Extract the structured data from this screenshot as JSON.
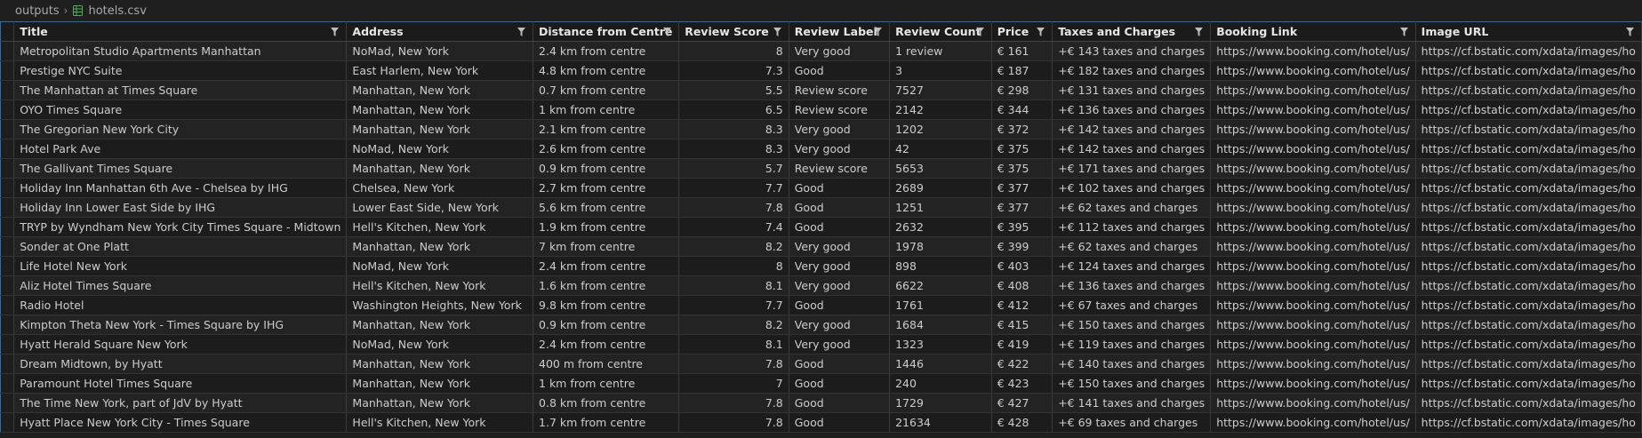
{
  "breadcrumb": {
    "folder": "outputs",
    "file": "hotels.csv"
  },
  "colors": {
    "accent": "#2a6fb5",
    "csv_icon": "#4caf50"
  },
  "columns": [
    {
      "label": "Title",
      "align": "left"
    },
    {
      "label": "Address",
      "align": "left"
    },
    {
      "label": "Distance from Centre",
      "align": "left"
    },
    {
      "label": "Review Score",
      "align": "right"
    },
    {
      "label": "Review Label",
      "align": "left"
    },
    {
      "label": "Review Count",
      "align": "left"
    },
    {
      "label": "Price",
      "align": "left"
    },
    {
      "label": "Taxes and Charges",
      "align": "left"
    },
    {
      "label": "Booking Link",
      "align": "left"
    },
    {
      "label": "Image URL",
      "align": "left"
    }
  ],
  "rows": [
    [
      "Metropolitan Studio Apartments Manhattan",
      "NoMad, New York",
      "2.4 km from centre",
      "8",
      "Very good",
      "1 review",
      "€ 161",
      "+€ 143 taxes and charges",
      "https://www.booking.com/hotel/us/",
      "https://cf.bstatic.com/xdata/images/ho"
    ],
    [
      "Prestige NYC Suite",
      "East Harlem, New York",
      "4.8 km from centre",
      "7.3",
      "Good",
      "3",
      "€ 187",
      "+€ 182 taxes and charges",
      "https://www.booking.com/hotel/us/",
      "https://cf.bstatic.com/xdata/images/ho"
    ],
    [
      "The Manhattan at Times Square",
      "Manhattan, New York",
      "0.7 km from centre",
      "5.5",
      "Review score",
      "7527",
      "€ 298",
      "+€ 131 taxes and charges",
      "https://www.booking.com/hotel/us/",
      "https://cf.bstatic.com/xdata/images/ho"
    ],
    [
      "OYO Times Square",
      "Manhattan, New York",
      "1 km from centre",
      "6.5",
      "Review score",
      "2142",
      "€ 344",
      "+€ 136 taxes and charges",
      "https://www.booking.com/hotel/us/",
      "https://cf.bstatic.com/xdata/images/ho"
    ],
    [
      "The Gregorian New York City",
      "Manhattan, New York",
      "2.1 km from centre",
      "8.3",
      "Very good",
      "1202",
      "€ 372",
      "+€ 142 taxes and charges",
      "https://www.booking.com/hotel/us/",
      "https://cf.bstatic.com/xdata/images/ho"
    ],
    [
      "Hotel Park Ave",
      "NoMad, New York",
      "2.6 km from centre",
      "8.3",
      "Very good",
      "42",
      "€ 375",
      "+€ 142 taxes and charges",
      "https://www.booking.com/hotel/us/",
      "https://cf.bstatic.com/xdata/images/ho"
    ],
    [
      "The Gallivant Times Square",
      "Manhattan, New York",
      "0.9 km from centre",
      "5.7",
      "Review score",
      "5653",
      "€ 375",
      "+€ 171 taxes and charges",
      "https://www.booking.com/hotel/us/",
      "https://cf.bstatic.com/xdata/images/ho"
    ],
    [
      "Holiday Inn Manhattan 6th Ave - Chelsea by IHG",
      "Chelsea, New York",
      "2.7 km from centre",
      "7.7",
      "Good",
      "2689",
      "€ 377",
      "+€ 102 taxes and charges",
      "https://www.booking.com/hotel/us/",
      "https://cf.bstatic.com/xdata/images/ho"
    ],
    [
      "Holiday Inn Lower East Side by IHG",
      "Lower East Side, New York",
      "5.6 km from centre",
      "7.8",
      "Good",
      "1251",
      "€ 377",
      "+€ 62 taxes and charges",
      "https://www.booking.com/hotel/us/",
      "https://cf.bstatic.com/xdata/images/ho"
    ],
    [
      "TRYP by Wyndham New York City Times Square - Midtown",
      "Hell's Kitchen, New York",
      "1.9 km from centre",
      "7.4",
      "Good",
      "2632",
      "€ 395",
      "+€ 112 taxes and charges",
      "https://www.booking.com/hotel/us/",
      "https://cf.bstatic.com/xdata/images/ho"
    ],
    [
      "Sonder at One Platt",
      "Manhattan, New York",
      "7 km from centre",
      "8.2",
      "Very good",
      "1978",
      "€ 399",
      "+€ 62 taxes and charges",
      "https://www.booking.com/hotel/us/",
      "https://cf.bstatic.com/xdata/images/ho"
    ],
    [
      "Life Hotel New York",
      "NoMad, New York",
      "2.4 km from centre",
      "8",
      "Very good",
      "898",
      "€ 403",
      "+€ 124 taxes and charges",
      "https://www.booking.com/hotel/us/",
      "https://cf.bstatic.com/xdata/images/ho"
    ],
    [
      "Aliz Hotel Times Square",
      "Hell's Kitchen, New York",
      "1.6 km from centre",
      "8.1",
      "Very good",
      "6622",
      "€ 408",
      "+€ 136 taxes and charges",
      "https://www.booking.com/hotel/us/",
      "https://cf.bstatic.com/xdata/images/ho"
    ],
    [
      "Radio Hotel",
      "Washington Heights, New York",
      "9.8 km from centre",
      "7.7",
      "Good",
      "1761",
      "€ 412",
      "+€ 67 taxes and charges",
      "https://www.booking.com/hotel/us/",
      "https://cf.bstatic.com/xdata/images/ho"
    ],
    [
      "Kimpton Theta New York - Times Square by IHG",
      "Manhattan, New York",
      "0.9 km from centre",
      "8.2",
      "Very good",
      "1684",
      "€ 415",
      "+€ 150 taxes and charges",
      "https://www.booking.com/hotel/us/",
      "https://cf.bstatic.com/xdata/images/ho"
    ],
    [
      "Hyatt Herald Square New York",
      "NoMad, New York",
      "2.4 km from centre",
      "8.1",
      "Very good",
      "1323",
      "€ 419",
      "+€ 119 taxes and charges",
      "https://www.booking.com/hotel/us/",
      "https://cf.bstatic.com/xdata/images/ho"
    ],
    [
      "Dream Midtown, by Hyatt",
      "Manhattan, New York",
      "400 m from centre",
      "7.8",
      "Good",
      "1446",
      "€ 422",
      "+€ 140 taxes and charges",
      "https://www.booking.com/hotel/us/",
      "https://cf.bstatic.com/xdata/images/ho"
    ],
    [
      "Paramount Hotel Times Square",
      "Manhattan, New York",
      "1 km from centre",
      "7",
      "Good",
      "240",
      "€ 423",
      "+€ 150 taxes and charges",
      "https://www.booking.com/hotel/us/",
      "https://cf.bstatic.com/xdata/images/ho"
    ],
    [
      "The Time New York, part of JdV by Hyatt",
      "Manhattan, New York",
      "0.8 km from centre",
      "7.8",
      "Good",
      "1729",
      "€ 427",
      "+€ 141 taxes and charges",
      "https://www.booking.com/hotel/us/",
      "https://cf.bstatic.com/xdata/images/ho"
    ],
    [
      "Hyatt Place New York City - Times Square",
      "Hell's Kitchen, New York",
      "1.7 km from centre",
      "7.8",
      "Good",
      "21634",
      "€ 428",
      "+€ 69 taxes and charges",
      "https://www.booking.com/hotel/us/",
      "https://cf.bstatic.com/xdata/images/ho"
    ]
  ]
}
